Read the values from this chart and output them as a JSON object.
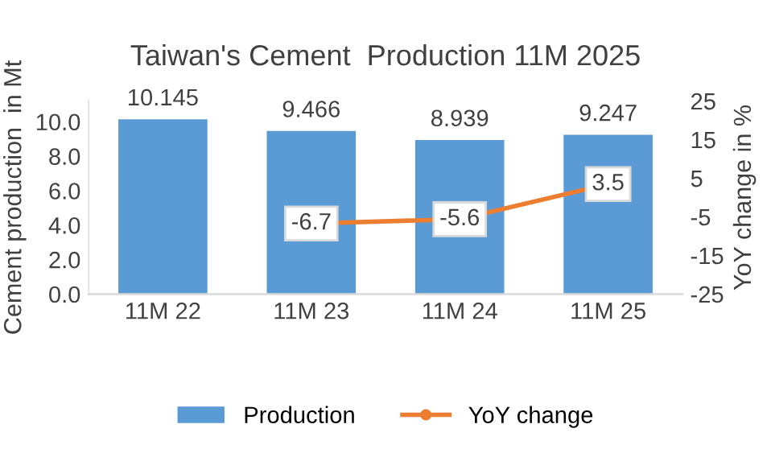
{
  "chart_data": {
    "type": "bar",
    "title": "Taiwan's Cement  Production 11M 2025",
    "categories": [
      "11M 22",
      "11M 23",
      "11M 24",
      "11M 25"
    ],
    "ylabel": "Cement production  in Mt",
    "y2label": "YoY change in %",
    "series": [
      {
        "name": "Production",
        "color": "#5b9bd5",
        "values": [
          10.145,
          9.466,
          8.939,
          9.247
        ]
      },
      {
        "name": "YoY change",
        "type": "line",
        "axis": "y2",
        "color": "#ed7d31",
        "marker": "circle",
        "values": [
          null,
          -6.7,
          -5.6,
          3.5
        ]
      }
    ],
    "data_labels": true,
    "ylim": [
      0,
      11.2
    ],
    "yticks": [
      {
        "value": 0,
        "label": "0.0"
      },
      {
        "value": 2,
        "label": "2.0"
      },
      {
        "value": 4,
        "label": "4.0"
      },
      {
        "value": 6,
        "label": "6.0"
      },
      {
        "value": 8,
        "label": "8.0"
      },
      {
        "value": 10,
        "label": "10.0"
      }
    ],
    "y2lim": [
      -25,
      25
    ],
    "y2ticks": [
      -25,
      -15,
      -5,
      5,
      15,
      25
    ],
    "legend": "bottom"
  }
}
